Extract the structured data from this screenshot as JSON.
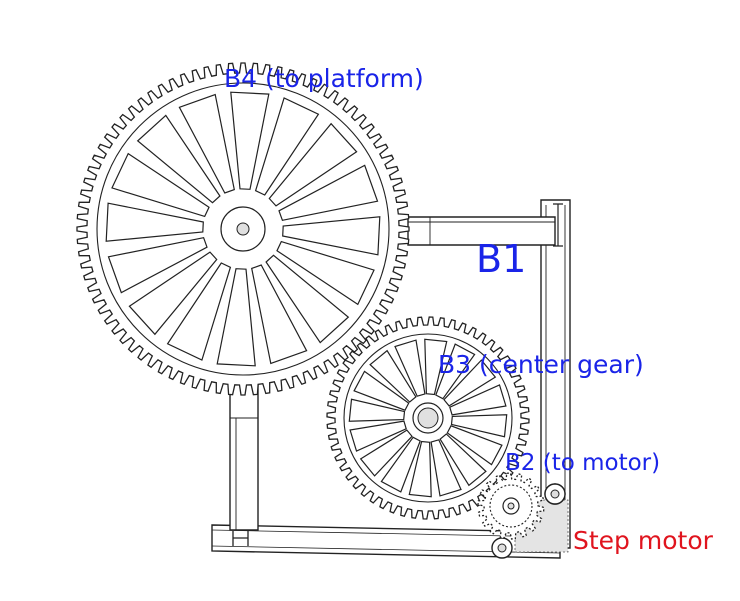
{
  "labels": {
    "b4": "B4 (to platform)",
    "b1": "B1",
    "b3": "B3 (center gear)",
    "b2": "B2 (to motor)",
    "step_motor": "Step motor"
  },
  "colors": {
    "label_blue": "#1a24e8",
    "label_red": "#e0141e",
    "line": "#222222",
    "fill": "#ffffff",
    "shade": "#e4e4e4"
  }
}
